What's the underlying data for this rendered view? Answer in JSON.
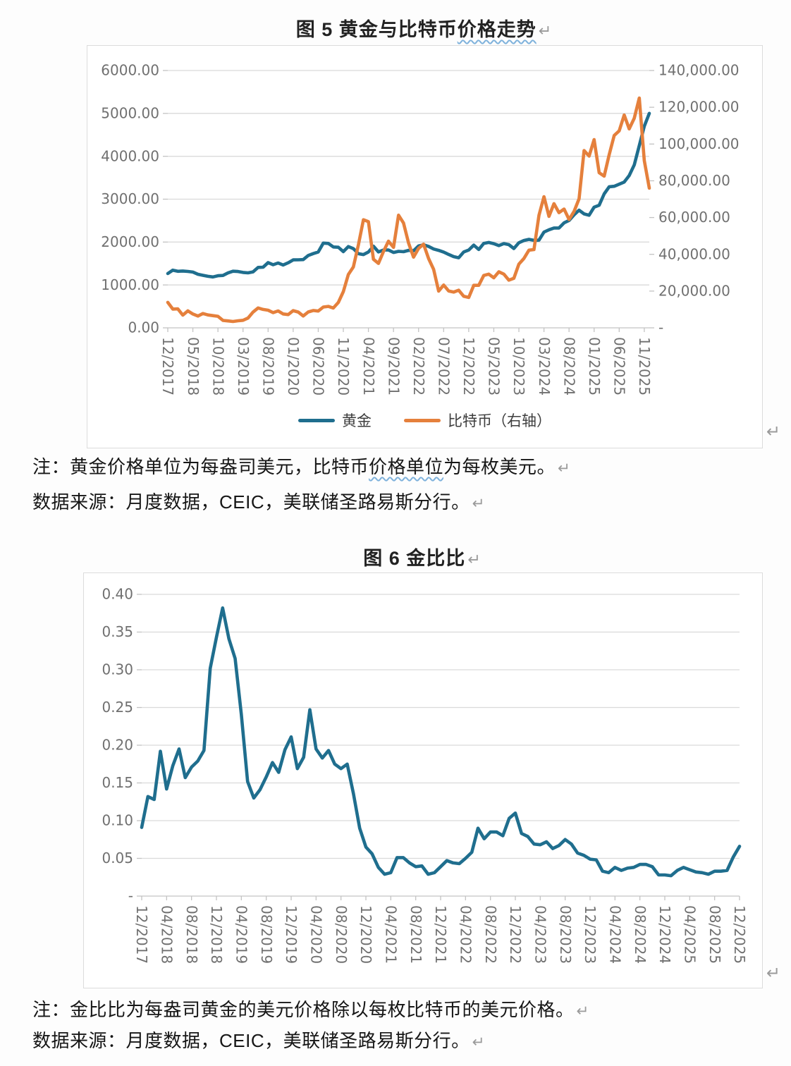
{
  "document": {
    "figure5": {
      "title_prefix": "图 5  黄金与比特币",
      "title_wavy": "价格走势",
      "paragraph_mark": "↵",
      "object_mark": "↵",
      "note1_pre": "注：黄金价格单位为每盎司美元，比特币",
      "note1_wavy": "价格单位",
      "note1_post": "为每枚美元。",
      "note2": "数据来源：月度数据，CEIC，美联储圣路易斯分行。"
    },
    "figure6": {
      "title": "图 6 金比比",
      "paragraph_mark": "↵",
      "object_mark": "↵",
      "note1": "注：金比比为每盎司黄金的美元价格除以每枚比特币的美元价格。",
      "note2": "数据来源：月度数据，CEIC，美联储圣路易斯分行。"
    }
  },
  "colors": {
    "gold_line": "#1f6e8e",
    "bitcoin_line": "#e5803c",
    "gridline": "#dadada",
    "axis_line": "#c3c3c3",
    "axis_label": "#707070",
    "chart_border": "#dcdcdc",
    "paragraph_mark": "#9a9a9a"
  },
  "chart_data": [
    {
      "type": "line",
      "title": "图 5 黄金与比特币价格走势",
      "x_frequency": "monthly",
      "x_range": [
        "12/2017",
        "12/2025"
      ],
      "x_tick_step": 5,
      "x_tick_labels": [
        "12/2017",
        "05/2018",
        "10/2018",
        "03/2019",
        "08/2019",
        "01/2020",
        "06/2020",
        "11/2020",
        "04/2021",
        "09/2021",
        "02/2022",
        "07/2022",
        "12/2022",
        "05/2023",
        "10/2023",
        "03/2024",
        "08/2024",
        "01/2025",
        "06/2025",
        "11/2025"
      ],
      "grid": "horizontal",
      "legend_position": "bottom",
      "y_left": {
        "min": 0,
        "max": 6000,
        "tick_labels": [
          "0.00",
          "1000.00",
          "2000.00",
          "3000.00",
          "4000.00",
          "5000.00",
          "6000.00"
        ]
      },
      "y_right": {
        "min": 0,
        "max": 140000,
        "tick_labels": [
          "-",
          "20,000.00",
          "40,000.00",
          "60,000.00",
          "80,000.00",
          "100,000.00",
          "120,000.00",
          "140,000.00"
        ]
      },
      "series": [
        {
          "name": "黄金",
          "axis": "left",
          "color": "#1f6e8e",
          "values": [
            1265,
            1345,
            1318,
            1325,
            1315,
            1300,
            1250,
            1224,
            1201,
            1187,
            1215,
            1222,
            1281,
            1320,
            1313,
            1292,
            1283,
            1305,
            1409,
            1414,
            1520,
            1472,
            1513,
            1464,
            1517,
            1584,
            1586,
            1591,
            1686,
            1731,
            1768,
            1976,
            1967,
            1886,
            1879,
            1777,
            1895,
            1848,
            1729,
            1708,
            1768,
            1903,
            1770,
            1814,
            1815,
            1757,
            1783,
            1775,
            1806,
            1797,
            1909,
            1937,
            1897,
            1838,
            1807,
            1766,
            1711,
            1661,
            1634,
            1769,
            1814,
            1928,
            1827,
            1969,
            1990,
            1963,
            1919,
            1965,
            1940,
            1849,
            1984,
            2036,
            2063,
            2040,
            2045,
            2233,
            2286,
            2327,
            2327,
            2448,
            2503,
            2635,
            2744,
            2657,
            2625,
            2812,
            2858,
            3124,
            3289,
            3300,
            3350,
            3400,
            3550,
            3800,
            4250,
            4700,
            5000
          ]
        },
        {
          "name": "比特币（右轴）",
          "axis": "right",
          "color": "#e5803c",
          "values": [
            13850,
            10200,
            10300,
            6900,
            9240,
            7500,
            6400,
            7780,
            7030,
            6630,
            6300,
            4040,
            3740,
            3460,
            3850,
            4100,
            5320,
            8560,
            10800,
            10000,
            9600,
            8300,
            9200,
            7550,
            7200,
            9350,
            8600,
            6440,
            8630,
            9450,
            9140,
            11320,
            11650,
            10780,
            13800,
            19700,
            29000,
            33100,
            45200,
            58800,
            57750,
            37330,
            35040,
            41460,
            47130,
            43790,
            61300,
            57000,
            46200,
            38480,
            43200,
            45540,
            37630,
            31790,
            19985,
            23300,
            20050,
            19430,
            20490,
            17160,
            16540,
            23130,
            23140,
            28480,
            29230,
            27220,
            30480,
            29230,
            25930,
            26970,
            34670,
            37710,
            42270,
            42580,
            61200,
            71330,
            60640,
            67540,
            62680,
            64620,
            58970,
            63330,
            70220,
            96450,
            93430,
            102430,
            84380,
            82550,
            94210,
            104640,
            107170,
            115760,
            108240,
            114060,
            125000,
            91000,
            76000
          ]
        }
      ]
    },
    {
      "type": "line",
      "title": "图 6 金比比",
      "x_frequency": "monthly",
      "x_range": [
        "12/2017",
        "12/2025"
      ],
      "x_tick_step": 4,
      "x_tick_labels": [
        "12/2017",
        "04/2018",
        "08/2018",
        "12/2018",
        "04/2019",
        "08/2019",
        "12/2019",
        "04/2020",
        "08/2020",
        "12/2020",
        "04/2021",
        "08/2021",
        "12/2021",
        "04/2022",
        "08/2022",
        "12/2022",
        "04/2023",
        "08/2023",
        "12/2023",
        "04/2024",
        "08/2024",
        "12/2024",
        "04/2025",
        "08/2025",
        "12/2025"
      ],
      "grid": "horizontal",
      "legend_position": "none",
      "y_left": {
        "min": 0,
        "max": 0.4,
        "tick_labels": [
          "-",
          "0.05",
          "0.10",
          "0.15",
          "0.20",
          "0.25",
          "0.30",
          "0.35",
          "0.40"
        ]
      },
      "series": [
        {
          "name": "金比比",
          "axis": "left",
          "color": "#1f6e8e",
          "values": [
            0.091,
            0.132,
            0.128,
            0.192,
            0.142,
            0.173,
            0.195,
            0.157,
            0.171,
            0.179,
            0.193,
            0.302,
            0.343,
            0.382,
            0.341,
            0.315,
            0.241,
            0.152,
            0.13,
            0.141,
            0.158,
            0.177,
            0.164,
            0.194,
            0.211,
            0.169,
            0.184,
            0.247,
            0.195,
            0.183,
            0.193,
            0.175,
            0.169,
            0.175,
            0.136,
            0.09,
            0.065,
            0.056,
            0.038,
            0.029,
            0.031,
            0.051,
            0.051,
            0.044,
            0.039,
            0.04,
            0.029,
            0.031,
            0.039,
            0.047,
            0.044,
            0.043,
            0.05,
            0.058,
            0.09,
            0.076,
            0.085,
            0.085,
            0.08,
            0.103,
            0.11,
            0.083,
            0.079,
            0.069,
            0.068,
            0.072,
            0.063,
            0.067,
            0.075,
            0.069,
            0.057,
            0.054,
            0.049,
            0.048,
            0.033,
            0.031,
            0.038,
            0.034,
            0.037,
            0.038,
            0.042,
            0.042,
            0.039,
            0.028,
            0.028,
            0.027,
            0.034,
            0.038,
            0.035,
            0.032,
            0.031,
            0.029,
            0.033,
            0.033,
            0.034,
            0.052,
            0.066
          ]
        }
      ]
    }
  ]
}
